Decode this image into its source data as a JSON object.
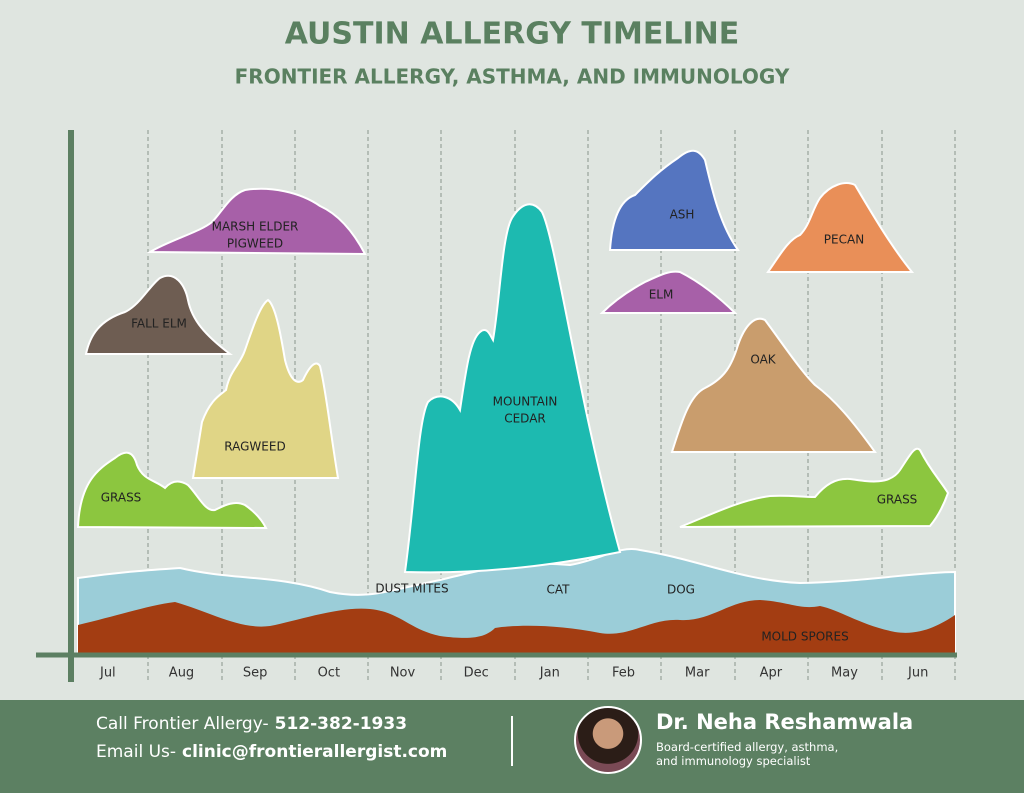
{
  "header": {
    "title": "AUSTIN ALLERGY TIMELINE",
    "subtitle": "FRONTIER ALLERGY, ASTHMA, AND IMMUNOLOGY"
  },
  "months": [
    "Jul",
    "Aug",
    "Sep",
    "Oct",
    "Nov",
    "Dec",
    "Jan",
    "Feb",
    "Mar",
    "Apr",
    "May",
    "Jun"
  ],
  "allergens": {
    "marsh_elder": [
      "MARSH ELDER",
      "PIGWEED"
    ],
    "fall_elm": "FALL ELM",
    "ragweed": "RAGWEED",
    "grass_left": "GRASS",
    "mountain_cedar": [
      "MOUNTAIN",
      "CEDAR"
    ],
    "ash": "ASH",
    "elm": "ELM",
    "pecan": "PECAN",
    "oak": "OAK",
    "grass_right": "GRASS",
    "dust_mites": "DUST MITES",
    "cat": "CAT",
    "dog": "DOG",
    "mold_spores": "MOLD SPORES"
  },
  "footer": {
    "call_label": "Call Frontier Allergy-",
    "phone": "512-382-1933",
    "email_label": "Email Us-",
    "email": "clinic@frontierallergist.com",
    "doctor": "Dr. Neha Reshamwala",
    "credentials": [
      "Board-certified allergy, asthma,",
      "and immunology specialist"
    ]
  }
}
